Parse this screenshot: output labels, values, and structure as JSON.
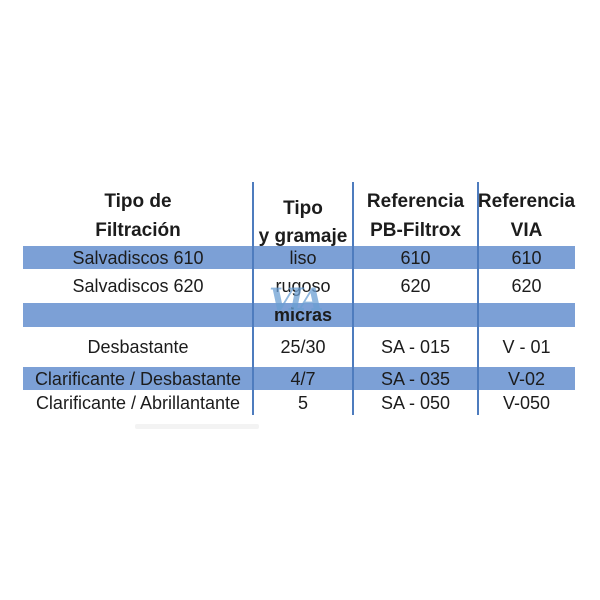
{
  "table": {
    "headers": [
      {
        "line1": "Tipo de",
        "line2": "Filtración"
      },
      {
        "line1": "Tipo",
        "line2": "y gramaje"
      },
      {
        "line1": "Referencia",
        "line2": "PB-Filtrox"
      },
      {
        "line1": "Referencia",
        "line2": "VIA"
      }
    ],
    "rows": [
      {
        "cells": [
          "Salvadiscos 610",
          "liso",
          "610",
          "610"
        ],
        "highlighted": true
      },
      {
        "cells": [
          "Salvadiscos 620",
          "rugoso",
          "620",
          "620"
        ],
        "highlighted": false
      },
      {
        "cells": [
          "",
          "micras",
          "",
          ""
        ],
        "highlighted": true
      },
      {
        "cells": [
          "Desbastante",
          "25/30",
          "SA - 015",
          "V - 01"
        ],
        "highlighted": false
      },
      {
        "cells": [
          "Clarificante / Desbastante",
          "4/7",
          "SA - 035",
          "V-02"
        ],
        "highlighted": true
      },
      {
        "cells": [
          "Clarificante / Abrillantante",
          "5",
          "SA - 050",
          "V-050"
        ],
        "highlighted": false
      }
    ],
    "watermark": "VIA"
  },
  "colors": {
    "band": "#7CA0D6",
    "line": "#4E7CBE",
    "text": "#1C1C1C",
    "watermark": "#6B9FD3",
    "bg": "#FFFFFF"
  }
}
